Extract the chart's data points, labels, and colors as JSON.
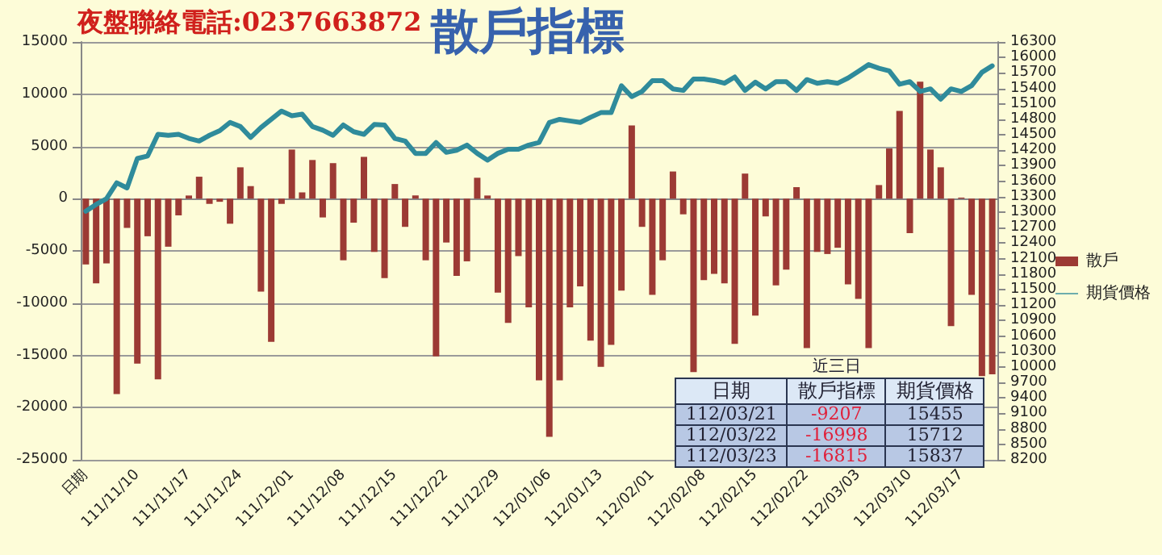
{
  "chart_data": {
    "type": "bar",
    "title": "散戶指標",
    "annotations": [
      "夜盤聯絡電話:0237663872",
      "近三日",
      "日期",
      "散戶指標",
      "期貨價格",
      "112/03/21",
      "-9207",
      "15455",
      "112/03/22",
      "-16998",
      "15712",
      "112/03/23",
      "-16815",
      "15837"
    ],
    "categories": [
      "日期",
      null,
      null,
      null,
      null,
      "111/11/10",
      null,
      null,
      null,
      null,
      "111/11/17",
      null,
      null,
      null,
      null,
      "111/11/24",
      null,
      null,
      null,
      null,
      "111/12/01",
      null,
      null,
      null,
      null,
      "111/12/08",
      null,
      null,
      null,
      null,
      "111/12/15",
      null,
      null,
      null,
      null,
      "111/12/22",
      null,
      null,
      null,
      null,
      "111/12/29",
      null,
      null,
      null,
      null,
      "112/01/06",
      null,
      null,
      null,
      null,
      "112/01/13",
      null,
      null,
      null,
      null,
      "112/02/01",
      null,
      null,
      null,
      null,
      "112/02/08",
      null,
      null,
      null,
      null,
      "112/02/15",
      null,
      null,
      null,
      null,
      "112/02/22",
      null,
      null,
      null,
      null,
      "112/03/03",
      null,
      null,
      null,
      null,
      "112/03/10",
      null,
      null,
      null,
      null,
      "112/03/17",
      null,
      null,
      null
    ],
    "series": [
      {
        "name": "散戶",
        "color": "#9c3a34",
        "values": [
          -6300,
          -8100,
          -6200,
          -18700,
          -2800,
          -15800,
          -3600,
          -17300,
          -4600,
          -1600,
          300,
          2100,
          -500,
          -300,
          -2400,
          3000,
          1200,
          -8900,
          -13700,
          -500,
          4700,
          600,
          3700,
          -1800,
          3400,
          -5900,
          -2300,
          4000,
          -5100,
          -7600,
          1400,
          -2700,
          300,
          -5900,
          -15100,
          -4200,
          -7400,
          -6000,
          2000,
          300,
          -9000,
          -11900,
          -5500,
          -10400,
          -17400,
          -22800,
          -17400,
          -10400,
          -8400,
          -13600,
          -16100,
          -14000,
          -8800,
          7000,
          -2700,
          -9200,
          -5900,
          2600,
          -1500,
          -16600,
          -7800,
          -7200,
          -8100,
          -13900,
          2400,
          -11200,
          -1700,
          -8300,
          -6800,
          1100,
          -14300,
          -5100,
          -5300,
          -4700,
          -8200,
          -9600,
          -14300,
          1300,
          4800,
          8400,
          -3300,
          11200,
          4700,
          3000,
          -12200,
          100,
          -9207,
          -16998,
          -16815
        ]
      },
      {
        "name": "期貨價格",
        "type": "line",
        "axis": "y2",
        "color": "#2f8b9b",
        "values": [
          13020,
          13150,
          13260,
          13570,
          13470,
          14040,
          14090,
          14510,
          14490,
          14510,
          14430,
          14380,
          14490,
          14580,
          14740,
          14660,
          14450,
          14640,
          14800,
          14960,
          14870,
          14900,
          14660,
          14590,
          14490,
          14690,
          14560,
          14510,
          14700,
          14690,
          14430,
          14380,
          14140,
          14140,
          14350,
          14160,
          14200,
          14300,
          14140,
          14010,
          14140,
          14220,
          14220,
          14300,
          14350,
          14740,
          14800,
          14770,
          14740,
          14840,
          14930,
          14930,
          15450,
          15240,
          15340,
          15550,
          15550,
          15390,
          15360,
          15580,
          15580,
          15550,
          15500,
          15620,
          15360,
          15520,
          15390,
          15530,
          15530,
          15360,
          15570,
          15500,
          15530,
          15500,
          15600,
          15730,
          15860,
          15790,
          15740,
          15480,
          15530,
          15340,
          15390,
          15190,
          15390,
          15340,
          15455,
          15712,
          15837
        ]
      }
    ],
    "ylim": [
      -25000,
      15000
    ],
    "yticks": [
      -25000,
      -20000,
      -15000,
      -10000,
      -5000,
      0,
      5000,
      10000,
      15000
    ],
    "y2lim": [
      8200,
      16300
    ],
    "y2ticks": [
      8200,
      8500,
      8800,
      9100,
      9400,
      9700,
      10000,
      10300,
      10600,
      10900,
      11200,
      11500,
      11800,
      12100,
      12400,
      12700,
      13000,
      13300,
      13600,
      13900,
      14200,
      14500,
      14800,
      15100,
      15400,
      15700,
      16000,
      16300
    ],
    "grid": "y",
    "legend": "right",
    "marker": "none",
    "line_style": "solid"
  }
}
